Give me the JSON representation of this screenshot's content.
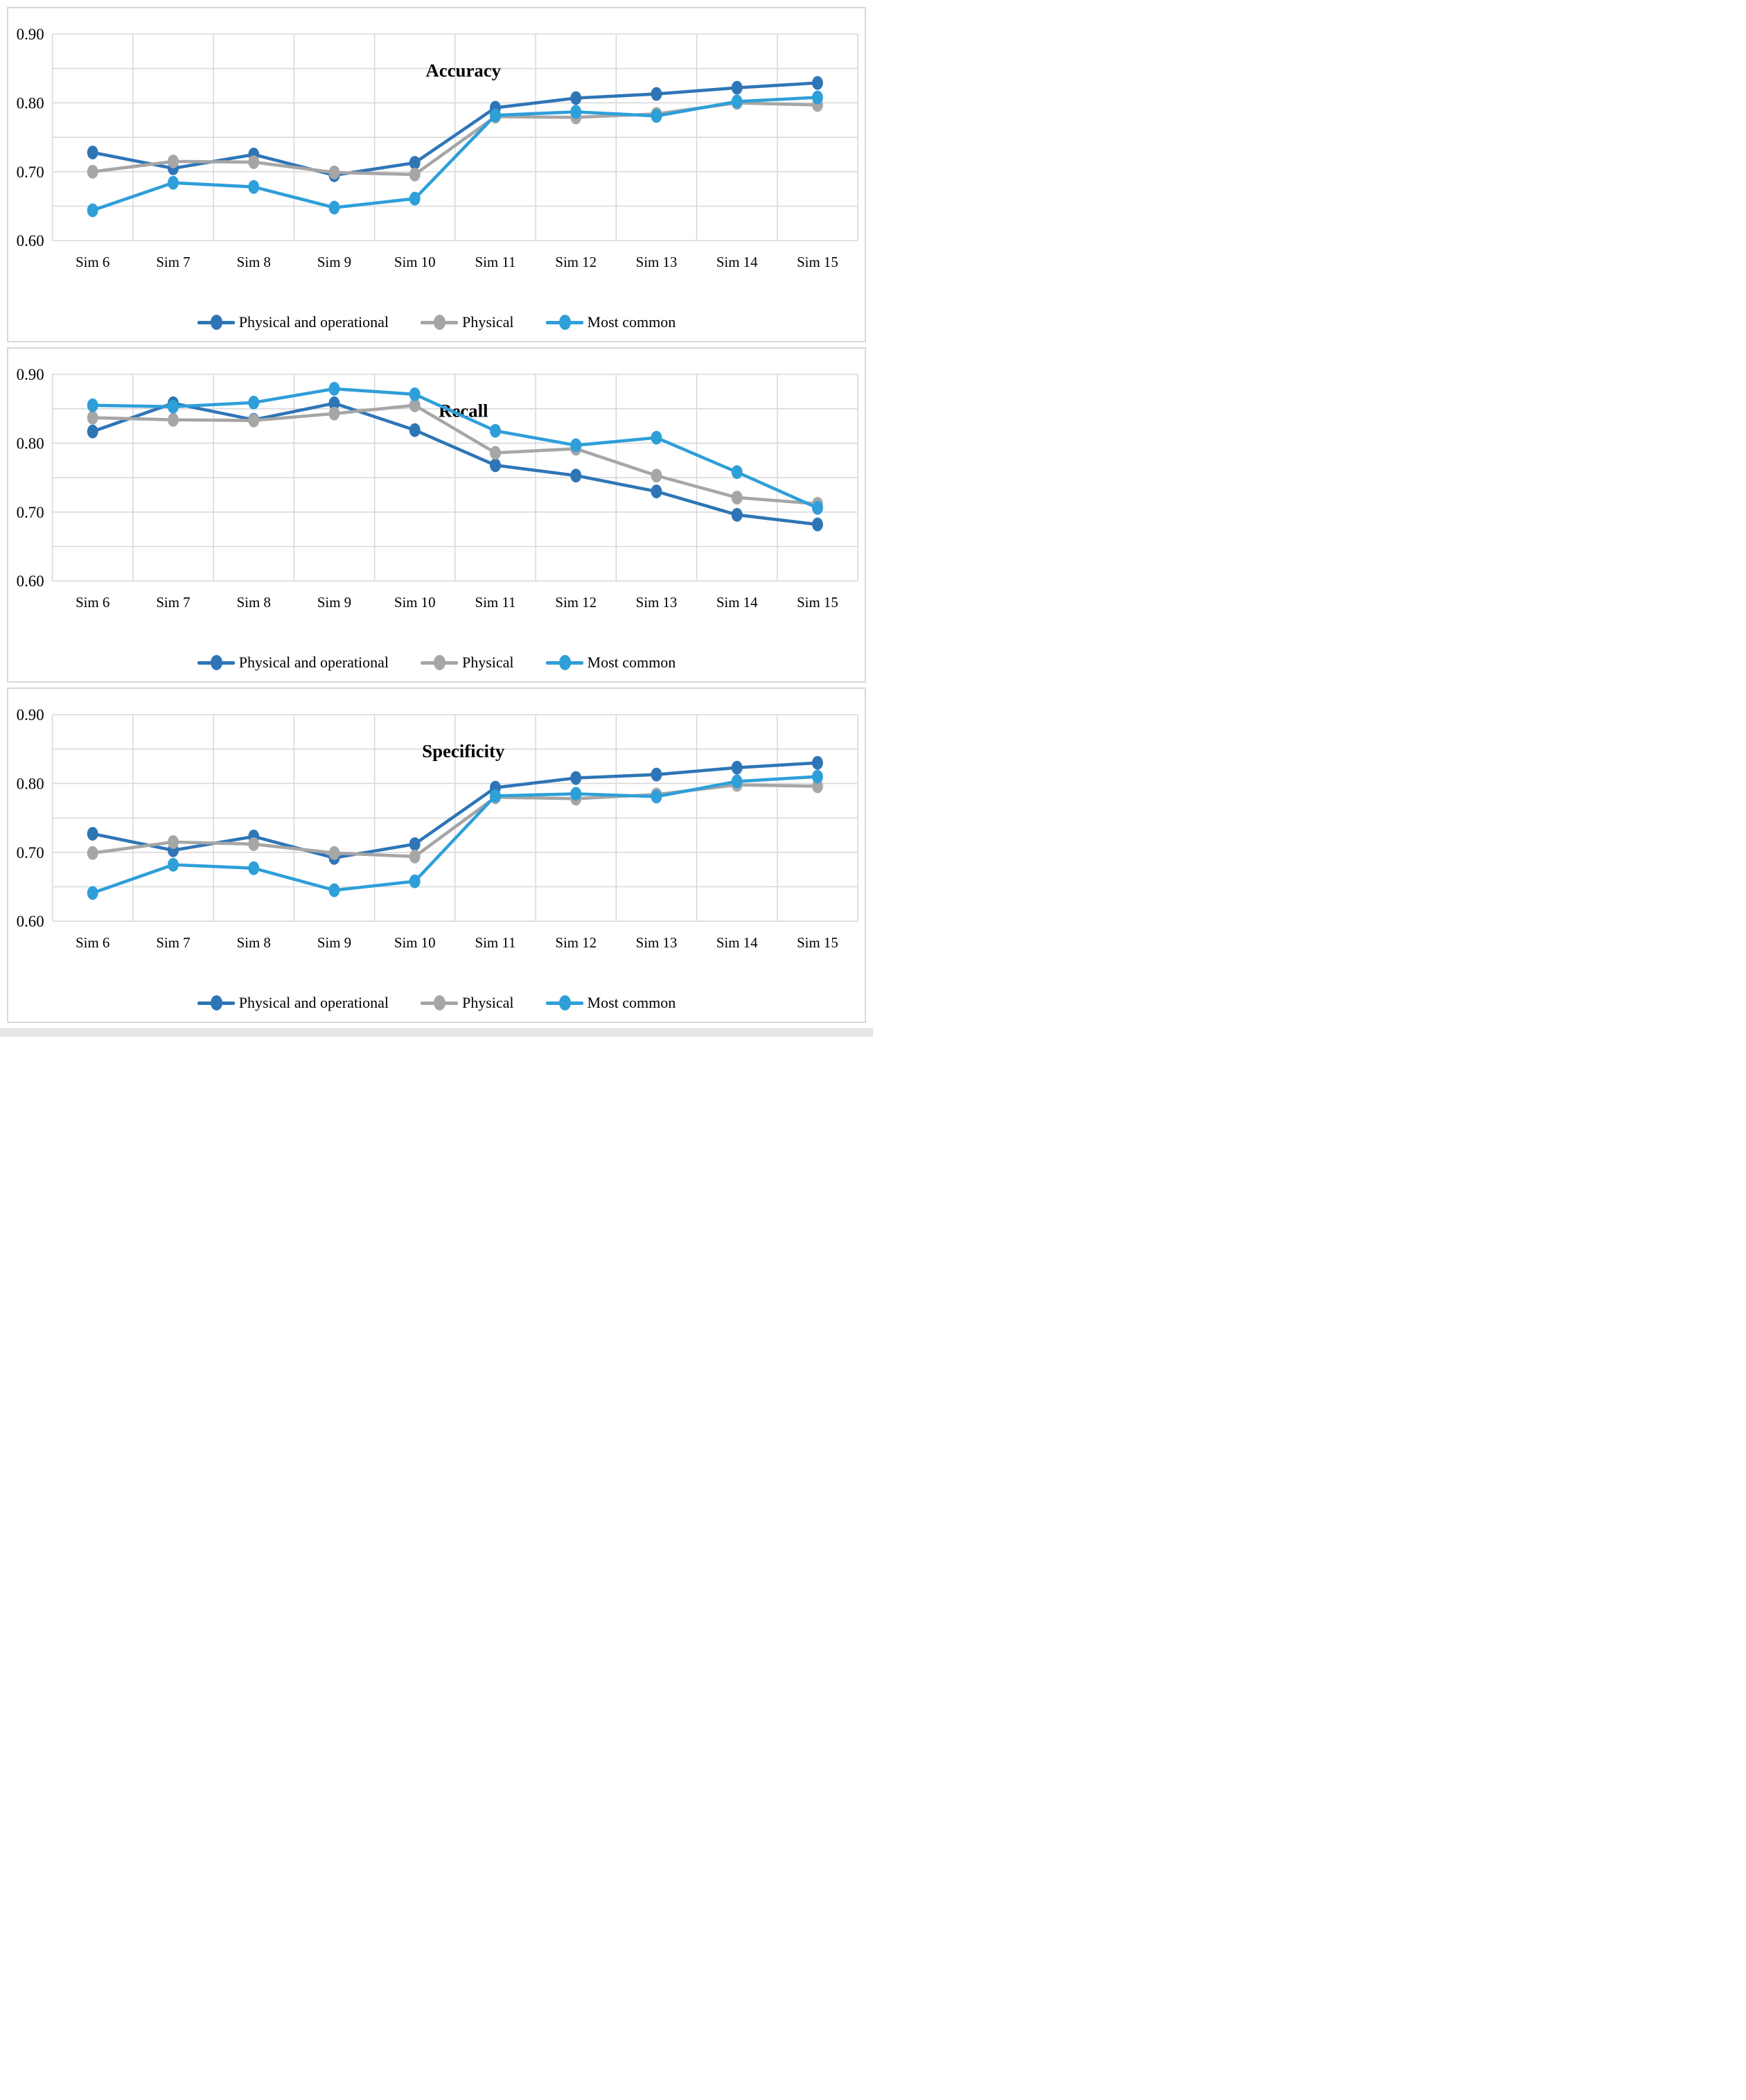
{
  "page": {
    "background": "#ffffff"
  },
  "colors": {
    "grid": "#d9d9d9",
    "plot_border": "#cfcfcf",
    "text": "#000000",
    "panel_border": "#d9d9d9"
  },
  "legend": {
    "items": [
      {
        "label": "Physical and operational",
        "color": "#2e75b6"
      },
      {
        "label": "Physical",
        "color": "#a6a6a6"
      },
      {
        "label": "Most common",
        "color": "#2e9fd9"
      }
    ]
  },
  "chart_data": [
    {
      "type": "line",
      "title": "Accuracy",
      "xlabel": "",
      "ylabel": "",
      "ylim": [
        0.6,
        0.9
      ],
      "grid_step": 0.05,
      "grid": true,
      "legend_position": "bottom",
      "ytick_labels": [
        "0.90",
        "0.80",
        "0.70",
        "0.60"
      ],
      "ytick_values": [
        0.9,
        0.8,
        0.7,
        0.6
      ],
      "categories": [
        "Sim 6",
        "Sim 7",
        "Sim 8",
        "Sim 9",
        "Sim 10",
        "Sim 11",
        "Sim 12",
        "Sim 13",
        "Sim 14",
        "Sim 15"
      ],
      "series": [
        {
          "name": "Physical and operational",
          "color": "#2e75b6",
          "values": [
            0.728,
            0.705,
            0.725,
            0.695,
            0.713,
            0.793,
            0.807,
            0.813,
            0.822,
            0.829
          ]
        },
        {
          "name": "Physical",
          "color": "#a6a6a6",
          "values": [
            0.7,
            0.715,
            0.714,
            0.699,
            0.696,
            0.78,
            0.779,
            0.784,
            0.8,
            0.797
          ]
        },
        {
          "name": "Most common",
          "color": "#2e9fd9",
          "values": [
            0.644,
            0.684,
            0.678,
            0.648,
            0.661,
            0.782,
            0.787,
            0.781,
            0.802,
            0.808
          ]
        }
      ]
    },
    {
      "type": "line",
      "title": "Recall",
      "xlabel": "",
      "ylabel": "",
      "ylim": [
        0.6,
        0.9
      ],
      "grid_step": 0.05,
      "grid": true,
      "legend_position": "bottom",
      "ytick_labels": [
        "0.90",
        "0.80",
        "0.70",
        "0.60"
      ],
      "ytick_values": [
        0.9,
        0.8,
        0.7,
        0.6
      ],
      "categories": [
        "Sim 6",
        "Sim 7",
        "Sim 8",
        "Sim 9",
        "Sim 10",
        "Sim 11",
        "Sim 12",
        "Sim 13",
        "Sim 14",
        "Sim 15"
      ],
      "series": [
        {
          "name": "Physical and operational",
          "color": "#2e75b6",
          "values": [
            0.817,
            0.858,
            0.834,
            0.858,
            0.819,
            0.768,
            0.753,
            0.73,
            0.696,
            0.682
          ]
        },
        {
          "name": "Physical",
          "color": "#a6a6a6",
          "values": [
            0.837,
            0.834,
            0.833,
            0.843,
            0.855,
            0.786,
            0.792,
            0.753,
            0.721,
            0.712
          ]
        },
        {
          "name": "Most common",
          "color": "#2e9fd9",
          "values": [
            0.855,
            0.853,
            0.859,
            0.879,
            0.871,
            0.818,
            0.797,
            0.808,
            0.758,
            0.706
          ]
        }
      ]
    },
    {
      "type": "line",
      "title": "Specificity",
      "xlabel": "",
      "ylabel": "",
      "ylim": [
        0.6,
        0.9
      ],
      "grid_step": 0.05,
      "grid": true,
      "legend_position": "bottom",
      "ytick_labels": [
        "0.90",
        "0.80",
        "0.70",
        "0.60"
      ],
      "ytick_values": [
        0.9,
        0.8,
        0.7,
        0.6
      ],
      "categories": [
        "Sim 6",
        "Sim 7",
        "Sim 8",
        "Sim 9",
        "Sim 10",
        "Sim 11",
        "Sim 12",
        "Sim 13",
        "Sim 14",
        "Sim 15"
      ],
      "series": [
        {
          "name": "Physical and operational",
          "color": "#2e75b6",
          "values": [
            0.727,
            0.703,
            0.723,
            0.692,
            0.712,
            0.794,
            0.808,
            0.813,
            0.823,
            0.83
          ]
        },
        {
          "name": "Physical",
          "color": "#a6a6a6",
          "values": [
            0.699,
            0.715,
            0.712,
            0.699,
            0.694,
            0.78,
            0.778,
            0.784,
            0.798,
            0.796
          ]
        },
        {
          "name": "Most common",
          "color": "#2e9fd9",
          "values": [
            0.641,
            0.682,
            0.677,
            0.645,
            0.658,
            0.782,
            0.785,
            0.781,
            0.803,
            0.81
          ]
        }
      ]
    }
  ]
}
